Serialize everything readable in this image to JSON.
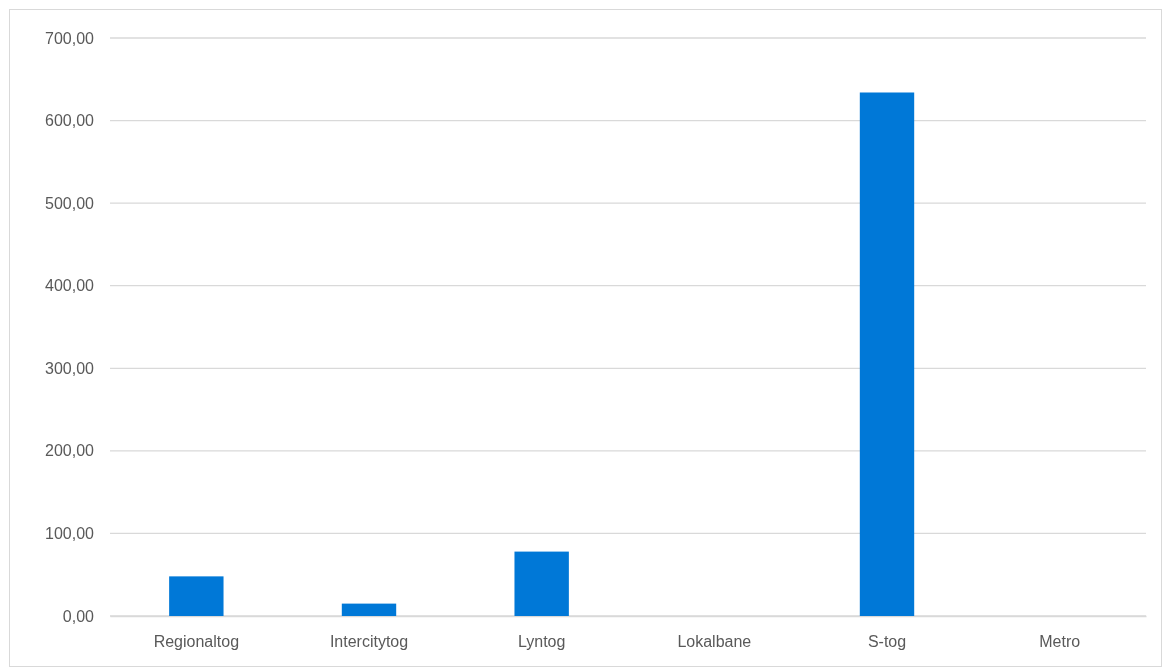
{
  "chart_data": {
    "type": "bar",
    "categories": [
      "Regionaltog",
      "Intercitytog",
      "Lyntog",
      "Lokalbane",
      "S-tog",
      "Metro"
    ],
    "values": [
      48,
      15,
      78,
      0,
      634,
      0
    ],
    "color": "#0078d7",
    "ylim": [
      0,
      700
    ],
    "yticks": [
      {
        "value": 0,
        "label": "0,00"
      },
      {
        "value": 100,
        "label": "100,00"
      },
      {
        "value": 200,
        "label": "200,00"
      },
      {
        "value": 300,
        "label": "300,00"
      },
      {
        "value": 400,
        "label": "400,00"
      },
      {
        "value": 500,
        "label": "500,00"
      },
      {
        "value": 600,
        "label": "600,00"
      },
      {
        "value": 700,
        "label": "700,00"
      }
    ],
    "grid": "y"
  }
}
